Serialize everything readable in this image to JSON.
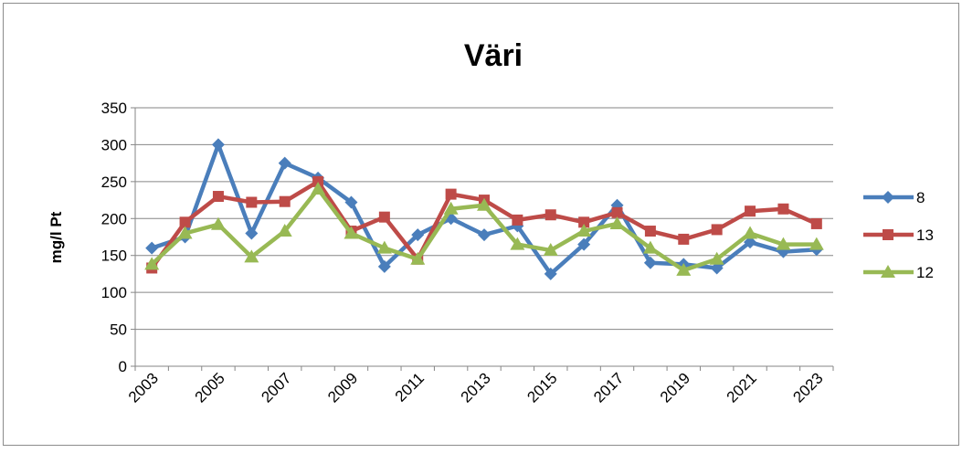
{
  "chart_data": {
    "type": "line",
    "title": "Väri",
    "y_label": "mg/l Pt",
    "categories": [
      "2003",
      null,
      "2005",
      null,
      "2007",
      null,
      "2009",
      null,
      "2011",
      null,
      "2013",
      null,
      "2015",
      null,
      "2017",
      null,
      "2019",
      null,
      "2021",
      null,
      "2023"
    ],
    "series": [
      {
        "name": "8",
        "color": "#4a7ebb",
        "marker": "diamond",
        "values": [
          160,
          175,
          300,
          180,
          275,
          255,
          222,
          135,
          178,
          200,
          178,
          190,
          125,
          165,
          218,
          140,
          138,
          133,
          168,
          155,
          158
        ]
      },
      {
        "name": "13",
        "color": "#be4b48",
        "marker": "square",
        "values": [
          133,
          195,
          230,
          222,
          223,
          250,
          183,
          202,
          145,
          233,
          225,
          198,
          205,
          195,
          208,
          183,
          172,
          185,
          210,
          213,
          193
        ]
      },
      {
        "name": "12",
        "color": "#98b954",
        "marker": "triangle",
        "values": [
          138,
          180,
          192,
          148,
          183,
          240,
          180,
          160,
          145,
          213,
          218,
          165,
          157,
          183,
          193,
          160,
          130,
          145,
          180,
          165,
          165
        ]
      }
    ],
    "ylim": [
      0,
      350
    ],
    "yticks": [
      0,
      50,
      100,
      150,
      200,
      250,
      300,
      350
    ],
    "grid": true,
    "legend": "right"
  }
}
